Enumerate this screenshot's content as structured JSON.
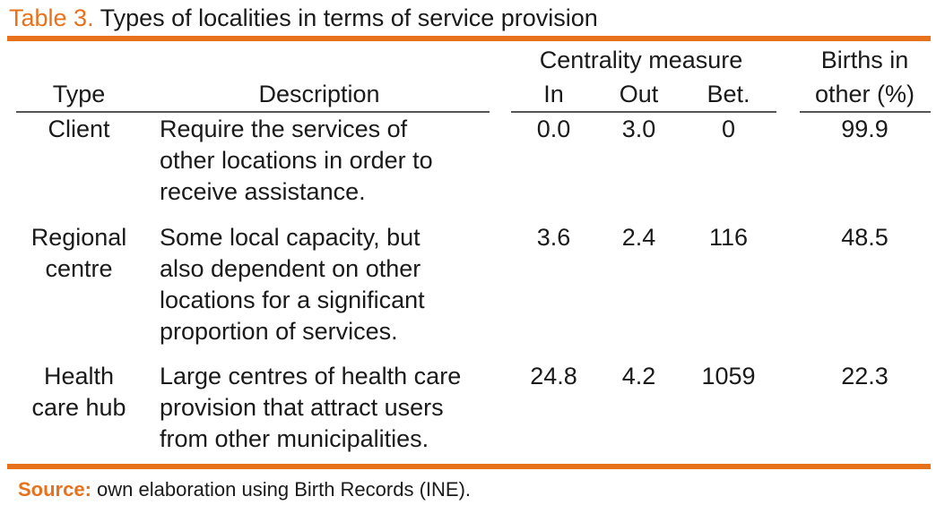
{
  "caption": {
    "number": "Table 3.",
    "title": "Types of localities in terms of service provision"
  },
  "headers": {
    "type": "Type",
    "description": "Description",
    "centrality_group": "Centrality measure",
    "in": "In",
    "out": "Out",
    "bet": "Bet.",
    "births_line1": "Births in",
    "births_line2": "other (%)"
  },
  "rows": [
    {
      "type_lines": [
        "Client"
      ],
      "description_lines": [
        "Require the services of",
        "other locations in order to",
        "receive assistance."
      ],
      "in": "0.0",
      "out": "3.0",
      "bet": "0",
      "births": "99.9"
    },
    {
      "type_lines": [
        "Regional",
        "centre"
      ],
      "description_lines": [
        "Some local capacity, but",
        "also dependent on other",
        "locations for a significant",
        "proportion of services."
      ],
      "in": "3.6",
      "out": "2.4",
      "bet": "116",
      "births": "48.5"
    },
    {
      "type_lines": [
        "Health",
        "care hub"
      ],
      "description_lines": [
        "Large centres of health care",
        "provision that attract users",
        "from other municipalities."
      ],
      "in": "24.8",
      "out": "4.2",
      "bet": "1059",
      "births": "22.3"
    }
  ],
  "source": {
    "label": "Source:",
    "text": "own elaboration using Birth Records (INE)."
  },
  "colors": {
    "accent": "#e8711c",
    "text": "#1a1a1a"
  }
}
